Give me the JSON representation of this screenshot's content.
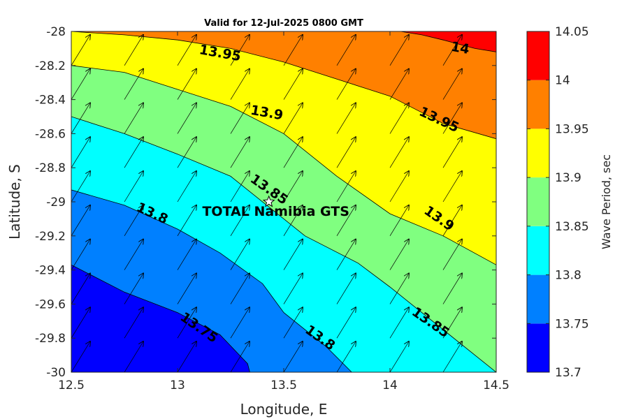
{
  "chart_data": {
    "type": "contour",
    "title": "Valid for 12-Jul-2025 0800 GMT",
    "xlabel": "Longitude, E",
    "ylabel": "Latitude, S",
    "xlim": [
      12.5,
      14.5
    ],
    "ylim": [
      -30,
      -28
    ],
    "xticks": [
      "12.5",
      "13",
      "13.5",
      "14",
      "14.5"
    ],
    "yticks": [
      "-28",
      "-28.2",
      "-28.4",
      "-28.6",
      "-28.8",
      "-29",
      "-29.2",
      "-29.4",
      "-29.6",
      "-29.8",
      "-30"
    ],
    "colorbar": {
      "label": "Wave Period, sec",
      "ticks": [
        "13.7",
        "13.75",
        "13.8",
        "13.85",
        "13.9",
        "13.95",
        "14",
        "14.05"
      ],
      "levels": [
        13.7,
        13.75,
        13.8,
        13.85,
        13.9,
        13.95,
        14.0,
        14.05
      ],
      "colors": [
        "#0000ff",
        "#0080ff",
        "#00ffff",
        "#80ff80",
        "#ffff00",
        "#ff8000",
        "#ff0000"
      ]
    },
    "contours": [
      {
        "level": "13.75",
        "points": [
          [
            12.5,
            -29.37
          ],
          [
            12.75,
            -29.53
          ],
          [
            13.0,
            -29.65
          ],
          [
            13.2,
            -29.78
          ],
          [
            13.33,
            -29.95
          ],
          [
            13.34,
            -30.0
          ]
        ]
      },
      {
        "level": "13.8",
        "points": [
          [
            12.5,
            -28.93
          ],
          [
            12.75,
            -29.02
          ],
          [
            13.0,
            -29.16
          ],
          [
            13.2,
            -29.3
          ],
          [
            13.4,
            -29.48
          ],
          [
            13.5,
            -29.65
          ],
          [
            13.7,
            -29.85
          ],
          [
            13.82,
            -30.0
          ]
        ]
      },
      {
        "level": "13.85",
        "points": [
          [
            12.5,
            -28.5
          ],
          [
            12.75,
            -28.6
          ],
          [
            13.0,
            -28.72
          ],
          [
            13.25,
            -28.85
          ],
          [
            13.45,
            -29.05
          ],
          [
            13.6,
            -29.2
          ],
          [
            13.85,
            -29.36
          ],
          [
            14.0,
            -29.5
          ],
          [
            14.2,
            -29.7
          ],
          [
            14.5,
            -30.0
          ]
        ]
      },
      {
        "level": "13.9",
        "points": [
          [
            12.5,
            -28.2
          ],
          [
            12.75,
            -28.24
          ],
          [
            13.0,
            -28.34
          ],
          [
            13.25,
            -28.44
          ],
          [
            13.5,
            -28.6
          ],
          [
            13.75,
            -28.85
          ],
          [
            14.0,
            -29.07
          ],
          [
            14.25,
            -29.2
          ],
          [
            14.5,
            -29.37
          ]
        ]
      },
      {
        "level": "13.95",
        "points": [
          [
            12.5,
            -28.0
          ],
          [
            12.75,
            -28.02
          ],
          [
            13.0,
            -28.05
          ],
          [
            13.25,
            -28.1
          ],
          [
            13.5,
            -28.18
          ],
          [
            13.75,
            -28.28
          ],
          [
            14.0,
            -28.38
          ],
          [
            14.25,
            -28.54
          ],
          [
            14.5,
            -28.63
          ]
        ]
      },
      {
        "level": "14",
        "points": [
          [
            14.05,
            -28.0
          ],
          [
            14.15,
            -28.02
          ],
          [
            14.25,
            -28.05
          ],
          [
            14.4,
            -28.1
          ],
          [
            14.5,
            -28.12
          ]
        ]
      }
    ],
    "contour_labels": [
      {
        "text": "13.95",
        "lon": 13.2,
        "lat": -28.13,
        "angle": 10
      },
      {
        "text": "13.9",
        "lon": 13.42,
        "lat": -28.48,
        "angle": 10
      },
      {
        "text": "13.85",
        "lon": 13.43,
        "lat": -28.93,
        "angle": 35
      },
      {
        "text": "13.8",
        "lon": 12.88,
        "lat": -29.07,
        "angle": 25
      },
      {
        "text": "13.75",
        "lon": 13.1,
        "lat": -29.74,
        "angle": 35
      },
      {
        "text": "13.8",
        "lon": 13.67,
        "lat": -29.8,
        "angle": 35
      },
      {
        "text": "14",
        "lon": 14.33,
        "lat": -28.1,
        "angle": 10
      },
      {
        "text": "13.95",
        "lon": 14.23,
        "lat": -28.52,
        "angle": 25
      },
      {
        "text": "13.9",
        "lon": 14.23,
        "lat": -29.1,
        "angle": 35
      },
      {
        "text": "13.85",
        "lon": 14.19,
        "lat": -29.71,
        "angle": 35
      }
    ],
    "arrows": {
      "lon": [
        12.5,
        12.75,
        13.0,
        13.25,
        13.5,
        13.75,
        14.0,
        14.25
      ],
      "lat": [
        -28.0,
        -28.2,
        -28.4,
        -28.6,
        -28.8,
        -29.0,
        -29.2,
        -29.4,
        -29.6,
        -29.8,
        -30.0
      ],
      "direction": "northeast"
    },
    "site": {
      "name": "TOTAL Namibia GTS",
      "lon": 13.43,
      "lat": -29.0
    }
  }
}
